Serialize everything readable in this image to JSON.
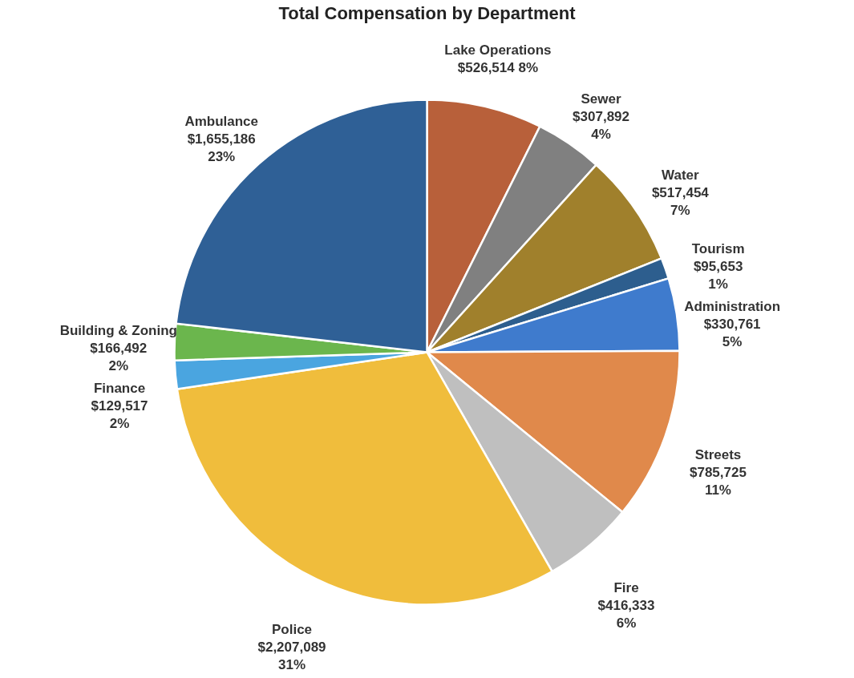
{
  "chart_data": {
    "type": "pie",
    "title": "Total Compensation by Department",
    "categories": [
      "Lake Operations",
      "Sewer",
      "Water",
      "Tourism",
      "Administration",
      "Streets",
      "Fire",
      "Police",
      "Finance",
      "Building & Zoning",
      "Ambulance"
    ],
    "values": [
      526514,
      307892,
      517454,
      95653,
      330761,
      785725,
      416333,
      2207089,
      129517,
      166492,
      1655186
    ],
    "value_labels": [
      "$526,514 8%",
      "$307,892\n4%",
      "$517,454\n7%",
      "$95,653\n1%",
      "$330,761\n5%",
      "$785,725\n11%",
      "$416,333\n6%",
      "$2,207,089\n31%",
      "$129,517\n2%",
      "$166,492\n2%",
      "$1,655,186\n23%"
    ],
    "colors": [
      "#b8603a",
      "#808080",
      "#a0802c",
      "#2d5e8e",
      "#3f7bcd",
      "#e0894b",
      "#bfbfbf",
      "#f0bd3c",
      "#4aa5e0",
      "#6bb64d",
      "#2f6096"
    ],
    "legend": false
  }
}
